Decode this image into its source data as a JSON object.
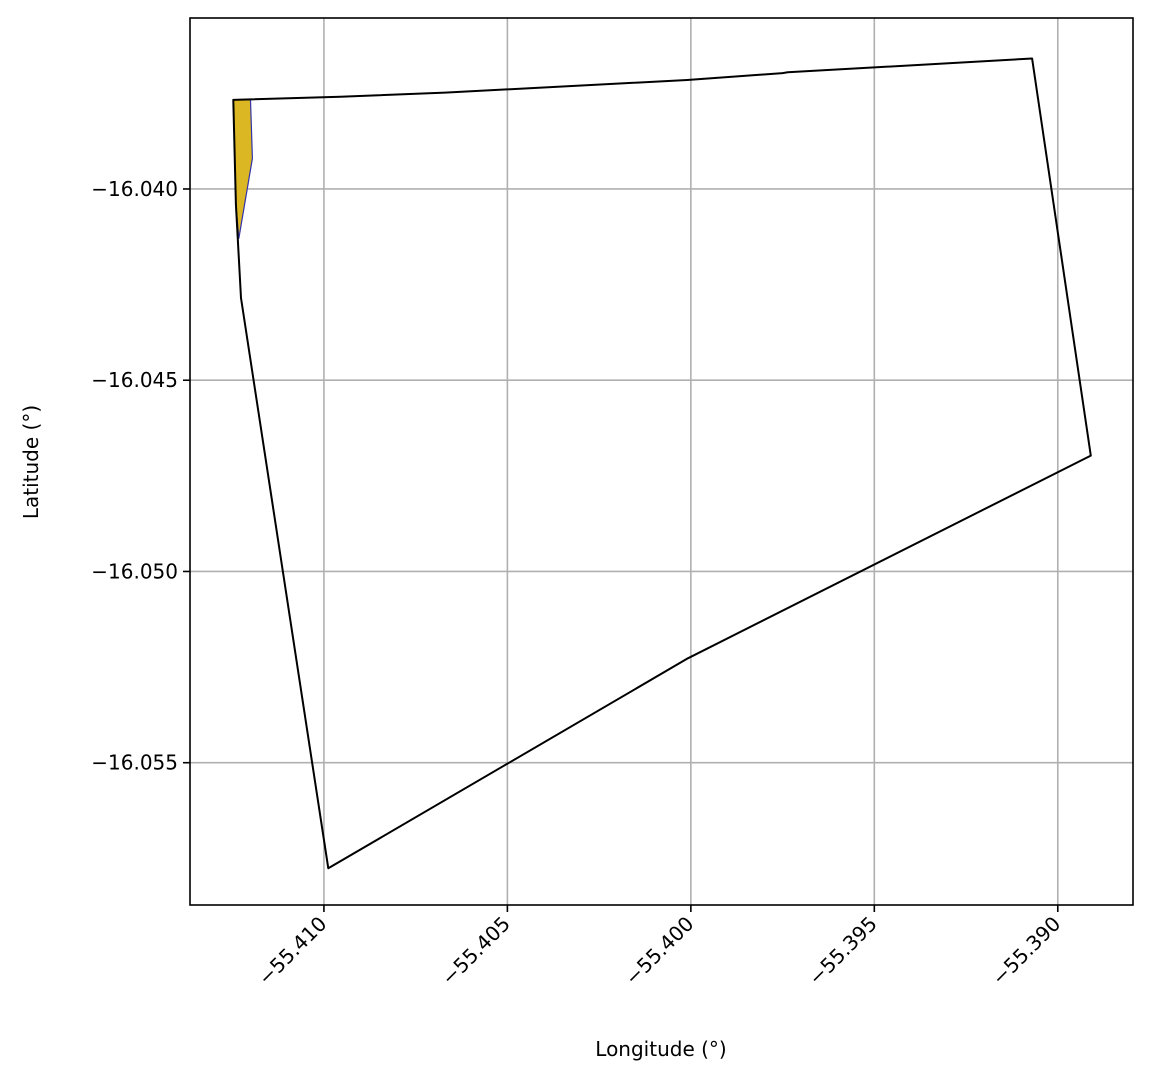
{
  "map": {
    "xlabel": "Longitude (°)",
    "ylabel": "Latitude (°)",
    "grid": true,
    "xlim": [
      -55.41365,
      -55.38795
    ],
    "ylim": [
      -16.05872,
      -16.03553
    ],
    "x_ticks": [
      {
        "value": -55.41,
        "label": "−55.410"
      },
      {
        "value": -55.405,
        "label": "−55.405"
      },
      {
        "value": -55.4,
        "label": "−55.400"
      },
      {
        "value": -55.395,
        "label": "−55.395"
      },
      {
        "value": -55.39,
        "label": "−55.390"
      }
    ],
    "y_ticks": [
      {
        "value": -16.04,
        "label": "−16.040"
      },
      {
        "value": -16.045,
        "label": "−16.045"
      },
      {
        "value": -16.05,
        "label": "−16.050"
      },
      {
        "value": -16.055,
        "label": "−16.055"
      }
    ],
    "boundary": {
      "name": "property-boundary",
      "color": "#000000",
      "points": [
        [
          -55.41247,
          -16.03767
        ],
        [
          -55.40955,
          -16.03759
        ],
        [
          -55.4067,
          -16.03748
        ],
        [
          -55.4001,
          -16.03715
        ],
        [
          -55.3975,
          -16.03697
        ],
        [
          -55.39736,
          -16.03695
        ],
        [
          -55.3907,
          -16.03659
        ],
        [
          -55.3891,
          -16.04697
        ],
        [
          -55.40008,
          -16.05227
        ],
        [
          -55.40988,
          -16.05776
        ],
        [
          -55.41226,
          -16.04285
        ],
        [
          -55.4124,
          -16.0404
        ],
        [
          -55.41247,
          -16.03767
        ]
      ]
    },
    "overlay": {
      "name": "highlighted-area",
      "fill": "#dbb723",
      "stroke": "#3333aa",
      "points": [
        [
          -55.41247,
          -16.03767
        ],
        [
          -55.412,
          -16.03767
        ],
        [
          -55.41195,
          -16.0392
        ],
        [
          -55.41232,
          -16.0413
        ],
        [
          -55.4124,
          -16.0404
        ],
        [
          -55.41247,
          -16.03767
        ]
      ]
    }
  }
}
